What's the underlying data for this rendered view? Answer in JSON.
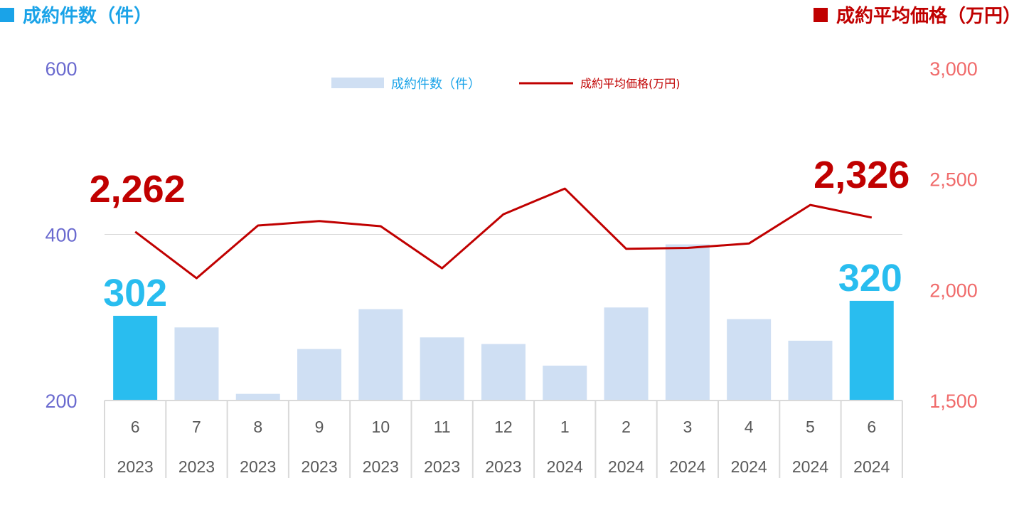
{
  "header": {
    "left_title": "成約件数（件）",
    "right_title": "成約平均価格（万円）"
  },
  "colors": {
    "bar_default": "#cfdff3",
    "bar_highlight": "#29bdef",
    "line": "#c00000",
    "left_axis_text": "#6a6acf",
    "right_axis_text": "#f06a6a",
    "header_left": "#1aa3e8",
    "header_right": "#c00000"
  },
  "chart_data": {
    "type": "bar+line",
    "legend": {
      "placement": "top-center",
      "bar_label": "成約件数（件）",
      "line_label": "成約平均価格(万円)"
    },
    "categories": [
      {
        "month": "6",
        "year": "2023"
      },
      {
        "month": "7",
        "year": "2023"
      },
      {
        "month": "8",
        "year": "2023"
      },
      {
        "month": "9",
        "year": "2023"
      },
      {
        "month": "10",
        "year": "2023"
      },
      {
        "month": "11",
        "year": "2023"
      },
      {
        "month": "12",
        "year": "2023"
      },
      {
        "month": "1",
        "year": "2024"
      },
      {
        "month": "2",
        "year": "2024"
      },
      {
        "month": "3",
        "year": "2024"
      },
      {
        "month": "4",
        "year": "2024"
      },
      {
        "month": "5",
        "year": "2024"
      },
      {
        "month": "6",
        "year": "2024"
      }
    ],
    "bar_series": {
      "name": "成約件数（件）",
      "axis": "left",
      "values": [
        302,
        288,
        208,
        262,
        310,
        276,
        268,
        242,
        312,
        388,
        298,
        272,
        320
      ],
      "highlight_indices": [
        0,
        12
      ]
    },
    "line_series": {
      "name": "成約平均価格(万円)",
      "axis": "right",
      "values": [
        2262,
        2052,
        2290,
        2310,
        2287,
        2097,
        2341,
        2457,
        2185,
        2189,
        2209,
        2383,
        2326
      ]
    },
    "left_axis": {
      "min": 200,
      "max": 600,
      "ticks": [
        "200",
        "400",
        "600"
      ]
    },
    "right_axis": {
      "min": 1500,
      "max": 3000,
      "ticks": [
        "1,500",
        "2,000",
        "2,500",
        "3,000"
      ]
    },
    "gridlines": "horizontal at left-axis 400",
    "callouts": [
      {
        "series": "line",
        "index": 0,
        "text": "2,262"
      },
      {
        "series": "line",
        "index": 12,
        "text": "2,326"
      },
      {
        "series": "bar",
        "index": 0,
        "text": "302"
      },
      {
        "series": "bar",
        "index": 12,
        "text": "320"
      }
    ]
  }
}
